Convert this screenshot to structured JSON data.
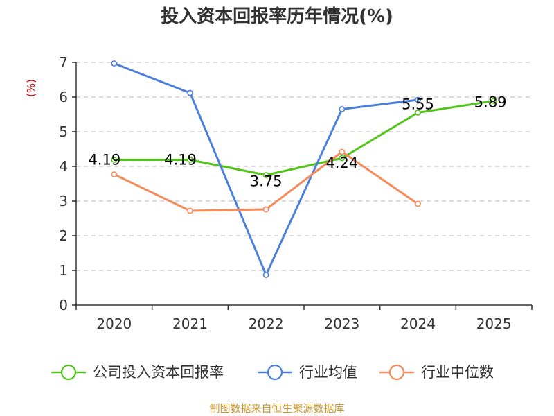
{
  "chart_data": {
    "type": "line",
    "title": "投入资本回报率历年情况(%)",
    "ylabel": "(%)",
    "xlabel": "",
    "categories": [
      "2020",
      "2021",
      "2022",
      "2023",
      "2024",
      "2025"
    ],
    "ylim": [
      0,
      7
    ],
    "yticks": [
      0,
      1,
      2,
      3,
      4,
      5,
      6,
      7
    ],
    "grid": true,
    "legend_position": "bottom",
    "series": [
      {
        "name": "公司投入资本回报率",
        "color": "#52c41a",
        "values": [
          4.19,
          4.19,
          3.75,
          4.24,
          5.55,
          5.89
        ],
        "labels": [
          "4.19",
          "4.19",
          "3.75",
          "4.24",
          "5.55",
          "5.89"
        ]
      },
      {
        "name": "行业均值",
        "color": "#4a7fdc",
        "values": [
          6.97,
          6.12,
          0.87,
          5.65,
          5.92,
          null
        ]
      },
      {
        "name": "行业中位数",
        "color": "#f58a5a",
        "values": [
          3.77,
          2.72,
          2.76,
          4.42,
          2.92,
          null
        ]
      }
    ],
    "source": "制图数据来自恒生聚源数据库"
  }
}
